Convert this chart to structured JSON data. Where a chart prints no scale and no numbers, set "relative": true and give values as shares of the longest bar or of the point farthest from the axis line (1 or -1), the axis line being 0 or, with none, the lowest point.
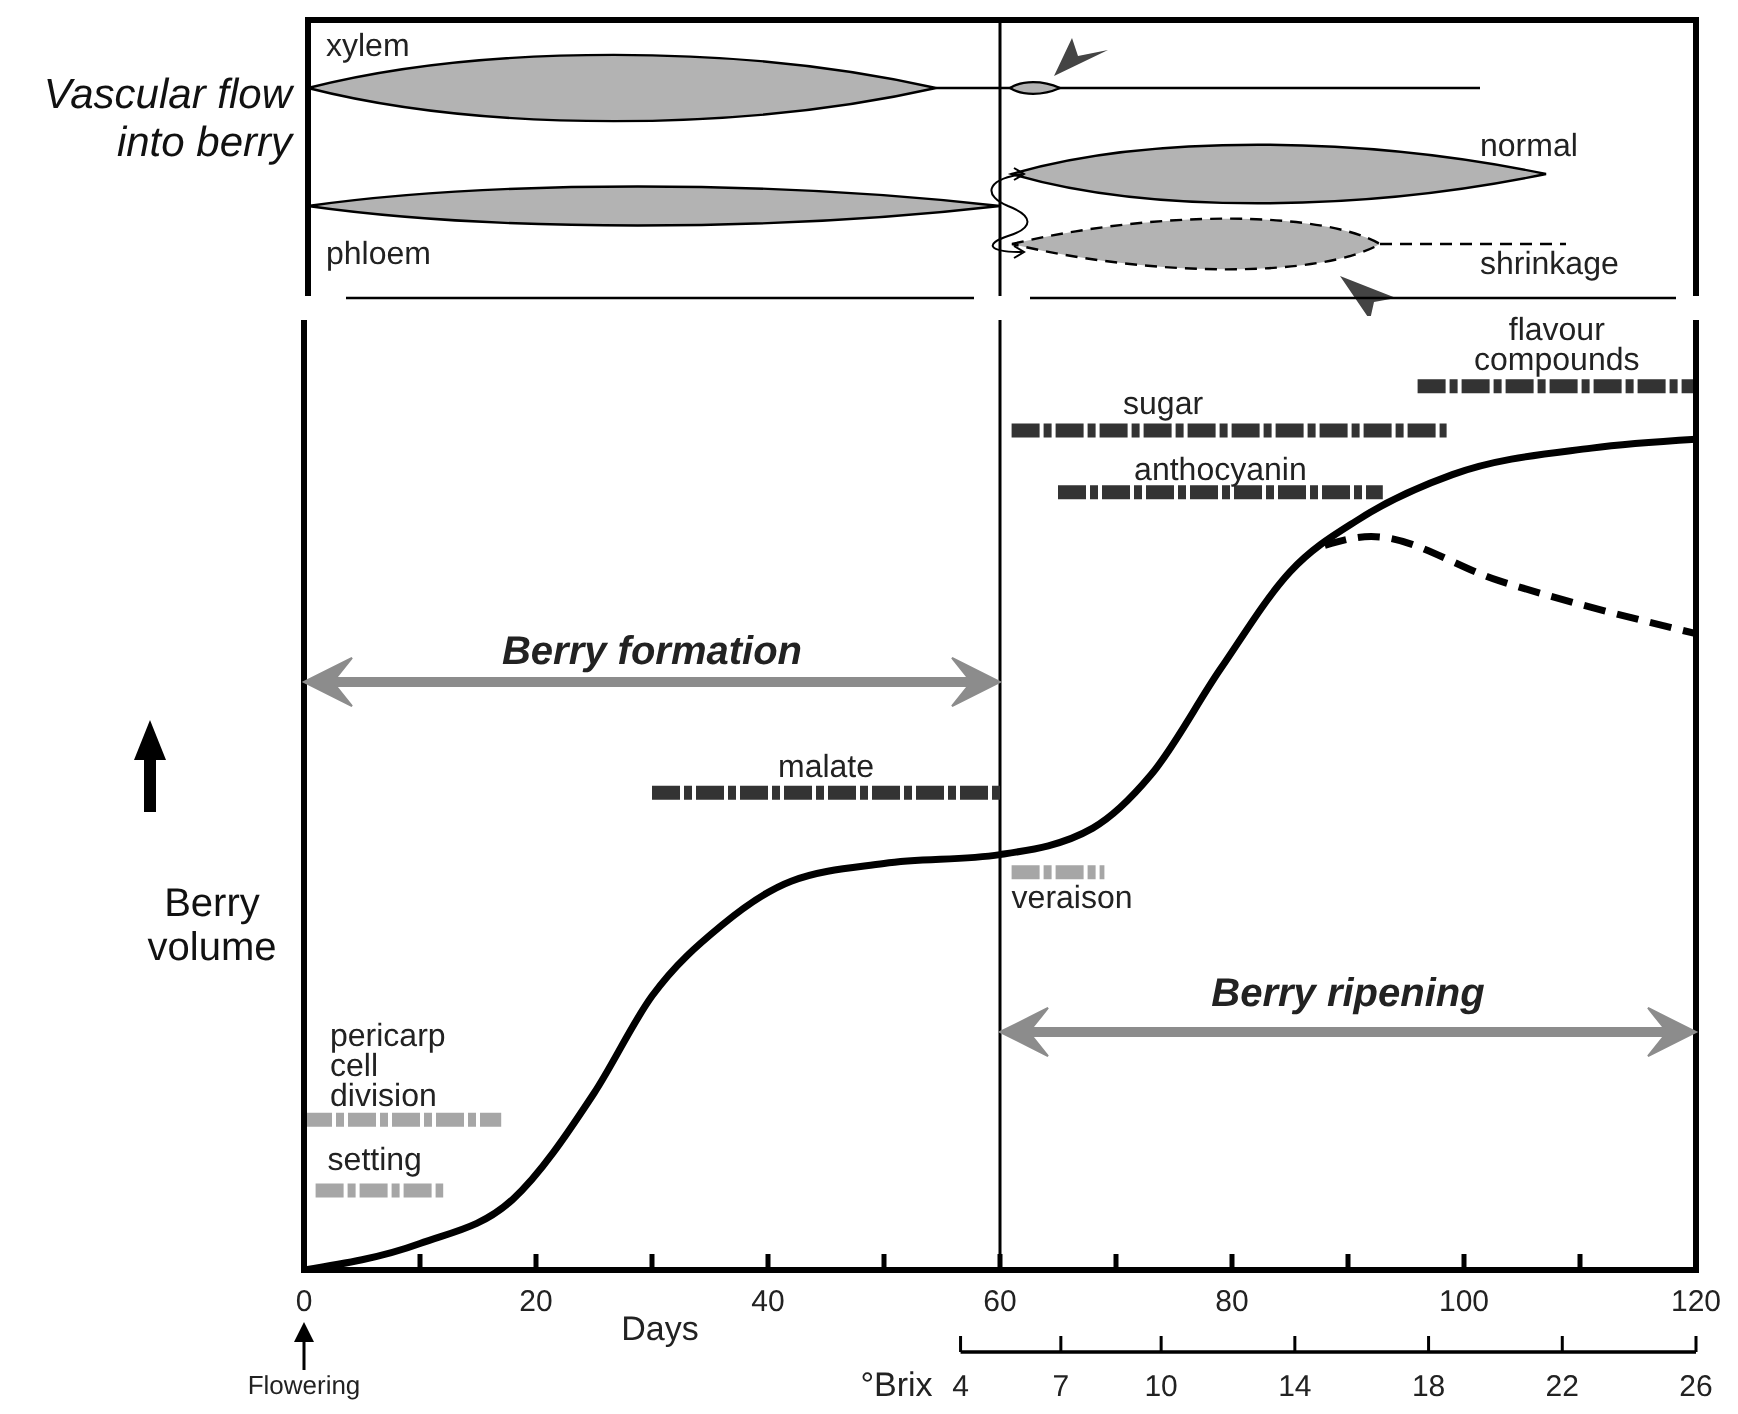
{
  "chart_data": [
    {
      "type": "other",
      "ylabel": "Vascular flow into berry",
      "annotations": [
        "xylem",
        "phloem",
        "normal",
        "shrinkage"
      ]
    },
    {
      "type": "line",
      "relative": true,
      "xlabel": "Days",
      "ylabel": "Berry volume",
      "xlim": [
        0,
        120
      ],
      "xticks": [
        0,
        {
          "value": 10,
          "label": null
        },
        20,
        {
          "value": 30,
          "label": null
        },
        40,
        {
          "value": 50,
          "label": null
        },
        60,
        {
          "value": 70,
          "label": null
        },
        80,
        {
          "value": 90,
          "label": null
        },
        100,
        {
          "value": 110,
          "label": null
        },
        120
      ],
      "x2label": "°Brix",
      "x2lim": [
        4,
        26
      ],
      "x2ticks": [
        4,
        7,
        10,
        14,
        18,
        22,
        26
      ],
      "ref_lines": [
        {
          "axis": "x",
          "value": 60
        }
      ],
      "annotations": [
        "Flowering",
        "Berry formation",
        "Berry ripening"
      ],
      "series": [
        {
          "color": "#000000",
          "x": [
            0,
            10,
            18,
            25,
            30,
            36,
            42,
            50,
            60,
            68,
            73,
            79,
            85,
            91,
            99,
            111,
            120
          ],
          "values": [
            0,
            0.03,
            0.08,
            0.2,
            0.31,
            0.39,
            0.44,
            0.46,
            0.47,
            0.5,
            0.56,
            0.68,
            0.79,
            0.85,
            0.9,
            0.93,
            0.94
          ]
        },
        {
          "color": "#000000",
          "line_style": "dashed",
          "x": [
            88,
            92,
            103,
            120
          ],
          "values": [
            0.82,
            0.83,
            0.78,
            0.72
          ]
        },
        {
          "name": "malate",
          "color": "#333333",
          "line_style": "dashed",
          "x": [
            30,
            60
          ],
          "values": [
            0.54,
            0.54
          ]
        },
        {
          "name": "veraison",
          "color": "#a6a6a6",
          "line_style": "dashed",
          "x": [
            61,
            69
          ],
          "values": [
            0.45,
            0.45
          ]
        },
        {
          "name": "sugar",
          "color": "#333333",
          "line_style": "dashed",
          "x": [
            61,
            98.5
          ],
          "values": [
            0.95,
            0.95
          ]
        },
        {
          "name": "anthocyanin",
          "color": "#333333",
          "line_style": "dashed",
          "x": [
            65,
            93
          ],
          "values": [
            0.88,
            0.88
          ]
        },
        {
          "name": "flavour compounds",
          "color": "#333333",
          "line_style": "dashed",
          "x": [
            96,
            120
          ],
          "values": [
            1,
            1
          ]
        },
        {
          "name": "pericarp cell division",
          "color": "#a6a6a6",
          "line_style": "dashed",
          "x": [
            0,
            17
          ],
          "values": [
            0.17,
            0.17
          ]
        },
        {
          "name": "setting",
          "color": "#a6a6a6",
          "line_style": "dashed",
          "x": [
            1,
            12
          ],
          "values": [
            0.09,
            0.09
          ]
        }
      ]
    }
  ]
}
